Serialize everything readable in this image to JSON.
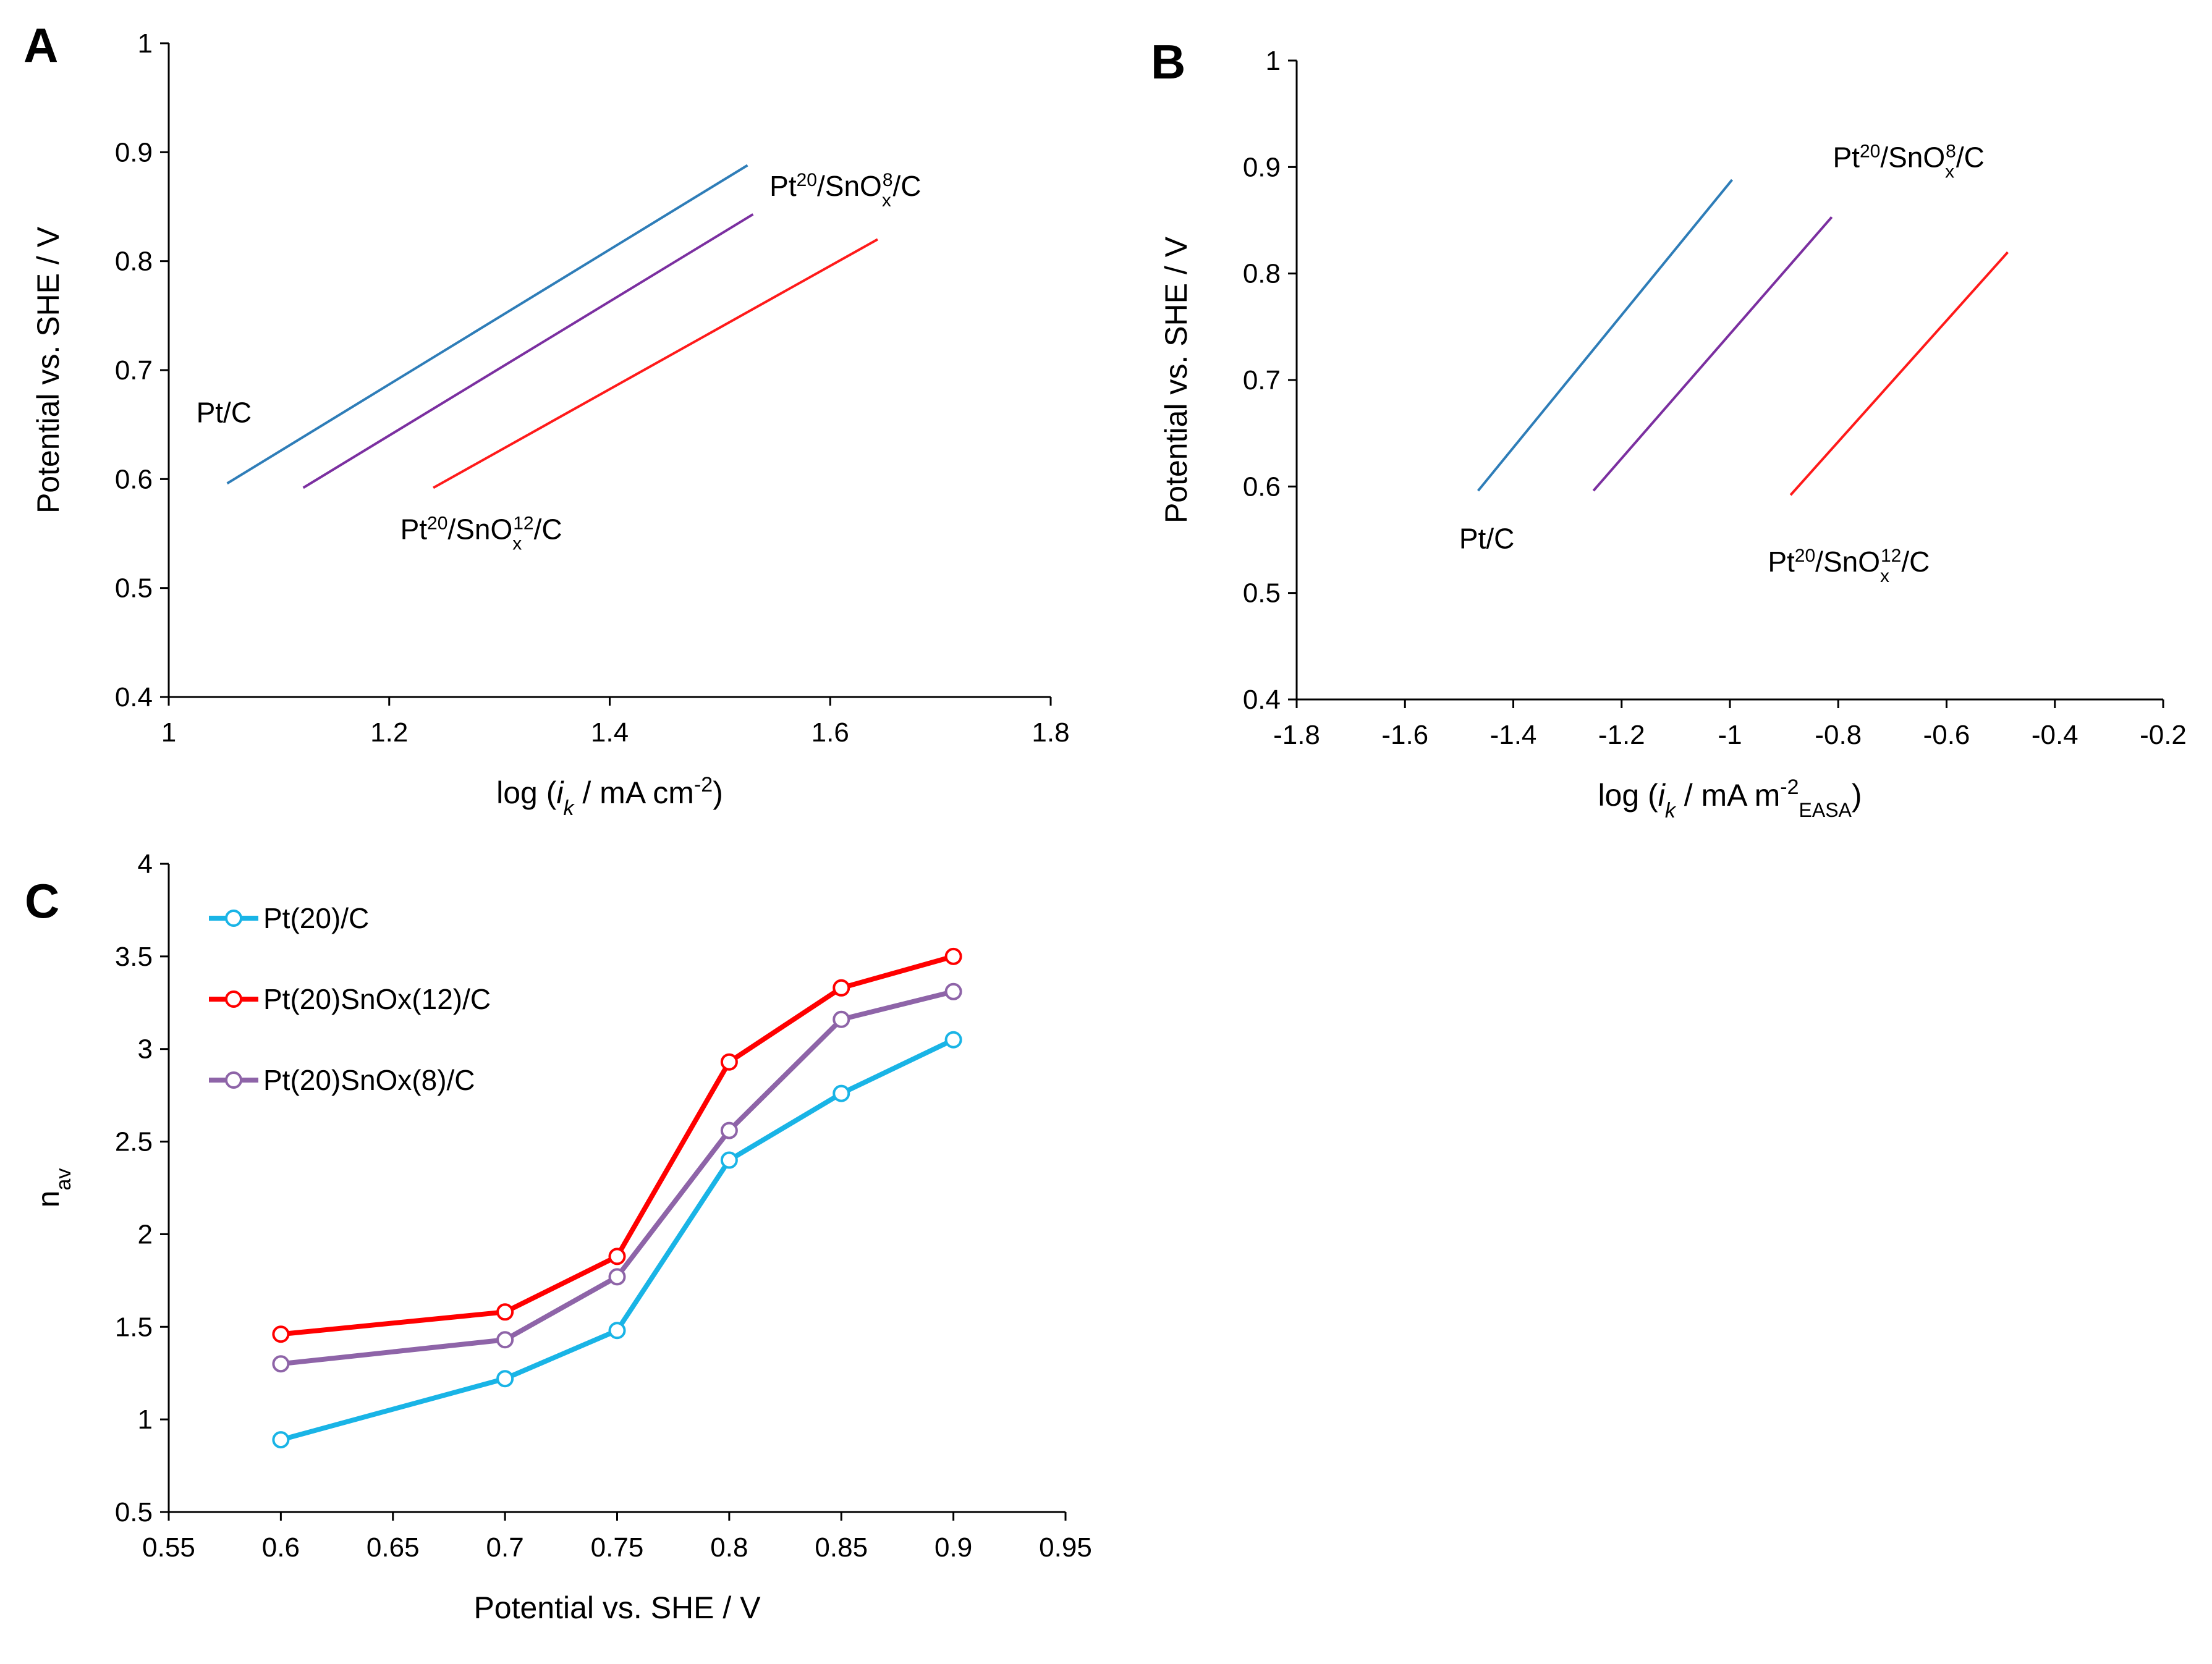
{
  "chart_data": [
    {
      "panel": "A",
      "type": "line",
      "xlabel": "log (ik / mA cm-2)",
      "xlabel_parts": {
        "pre": "log (",
        "i": "i",
        "k": "k",
        "post": " / mA cm",
        "sup": "-2",
        "close": ")"
      },
      "ylabel": "Potential vs. SHE / V",
      "xlim": [
        1,
        1.8
      ],
      "ylim": [
        0.4,
        1
      ],
      "xticks": [
        1,
        1.2,
        1.4,
        1.6,
        1.8
      ],
      "xtick_labels": [
        "1",
        "1.2",
        "1.4",
        "1.6",
        "1.8"
      ],
      "yticks": [
        0.4,
        0.5,
        0.6,
        0.7,
        0.8,
        0.9,
        1
      ],
      "ytick_labels": [
        "0.4",
        "0.5",
        "0.6",
        "0.7",
        "0.8",
        "0.9",
        "1"
      ],
      "series": [
        {
          "name": "Pt/C",
          "color": "#2e7db8",
          "x": [
            1.053,
            1.525
          ],
          "y": [
            0.596,
            0.888
          ]
        },
        {
          "name": "Pt20/SnOx8/C",
          "color": "#7b2fa0",
          "x": [
            1.122,
            1.53
          ],
          "y": [
            0.592,
            0.843
          ]
        },
        {
          "name": "Pt20/SnOx12/C",
          "color": "#ff1a1a",
          "x": [
            1.24,
            1.643
          ],
          "y": [
            0.592,
            0.82
          ]
        }
      ],
      "annotations": [
        {
          "text": "Pt/C",
          "at": [
            1.025,
            0.652
          ]
        },
        {
          "text_parts": [
            "Pt",
            "20",
            "/SnO",
            "x",
            "8",
            "/C"
          ],
          "at": [
            1.545,
            0.86
          ]
        },
        {
          "text_parts": [
            "Pt",
            "20",
            "/SnO",
            "x",
            "12",
            "/C"
          ],
          "at": [
            1.21,
            0.545
          ]
        }
      ]
    },
    {
      "panel": "B",
      "type": "line",
      "xlabel": "log (ik / mA m-2EASA)",
      "xlabel_parts": {
        "pre": "log (",
        "i": "i",
        "k": "k",
        "post": " / mA m",
        "sup": "-2",
        "sub": "EASA",
        "close": ")"
      },
      "ylabel": "Potential vs. SHE / V",
      "xlim": [
        -1.8,
        -0.2
      ],
      "ylim": [
        0.4,
        1
      ],
      "xticks": [
        -1.8,
        -1.6,
        -1.4,
        -1.2,
        -1,
        -0.8,
        -0.6,
        -0.4,
        -0.2
      ],
      "xtick_labels": [
        "-1.8",
        "-1.6",
        "-1.4",
        "-1.2",
        "-1",
        "-0.8",
        "-0.6",
        "-0.4",
        "-0.2"
      ],
      "yticks": [
        0.4,
        0.5,
        0.6,
        0.7,
        0.8,
        0.9,
        1
      ],
      "ytick_labels": [
        "0.4",
        "0.5",
        "0.6",
        "0.7",
        "0.8",
        "0.9",
        "1"
      ],
      "series": [
        {
          "name": "Pt/C",
          "color": "#2e7db8",
          "x": [
            -1.465,
            -0.996
          ],
          "y": [
            0.596,
            0.888
          ]
        },
        {
          "name": "Pt20/SnOx8/C",
          "color": "#7b2fa0",
          "x": [
            -1.252,
            -0.812
          ],
          "y": [
            0.596,
            0.853
          ]
        },
        {
          "name": "Pt20/SnOx12/C",
          "color": "#ff1a1a",
          "x": [
            -0.888,
            -0.487
          ],
          "y": [
            0.592,
            0.82
          ]
        }
      ],
      "annotations": [
        {
          "text": "Pt/C",
          "at": [
            -1.5,
            0.542
          ]
        },
        {
          "text_parts": [
            "Pt",
            "20",
            "/SnO",
            "x",
            "8",
            "/C"
          ],
          "at": [
            -0.81,
            0.9
          ]
        },
        {
          "text_parts": [
            "Pt",
            "20",
            "/SnO",
            "x",
            "12",
            "/C"
          ],
          "at": [
            -0.93,
            0.52
          ]
        }
      ]
    },
    {
      "panel": "C",
      "type": "line",
      "xlabel": "Potential vs. SHE / V",
      "ylabel": "nav",
      "ylabel_parts": {
        "main": "n",
        "sub": "av"
      },
      "xlim": [
        0.55,
        0.95
      ],
      "ylim": [
        0.5,
        4
      ],
      "xticks": [
        0.55,
        0.6,
        0.65,
        0.7,
        0.75,
        0.8,
        0.85,
        0.9,
        0.95
      ],
      "xtick_labels": [
        "0.55",
        "0.6",
        "0.65",
        "0.7",
        "0.75",
        "0.8",
        "0.85",
        "0.9",
        "0.95"
      ],
      "yticks": [
        0.5,
        1,
        1.5,
        2,
        2.5,
        3,
        3.5,
        4
      ],
      "ytick_labels": [
        "0.5",
        "1",
        "1.5",
        "2",
        "2.5",
        "3",
        "3.5",
        "4"
      ],
      "x": [
        0.6,
        0.7,
        0.75,
        0.8,
        0.85,
        0.9
      ],
      "series": [
        {
          "name": "Pt(20)/C",
          "color": "#19b4e6",
          "values": [
            0.89,
            1.22,
            1.48,
            2.4,
            2.76,
            3.05
          ]
        },
        {
          "name": "Pt(20)SnOx(12)/C",
          "color": "#ff0000",
          "values": [
            1.46,
            1.58,
            1.88,
            2.93,
            3.33,
            3.5
          ]
        },
        {
          "name": "Pt(20)SnOx(8)/C",
          "color": "#8e64a8",
          "values": [
            1.3,
            1.43,
            1.77,
            2.56,
            3.16,
            3.31
          ]
        }
      ],
      "legend": "top-left"
    }
  ]
}
